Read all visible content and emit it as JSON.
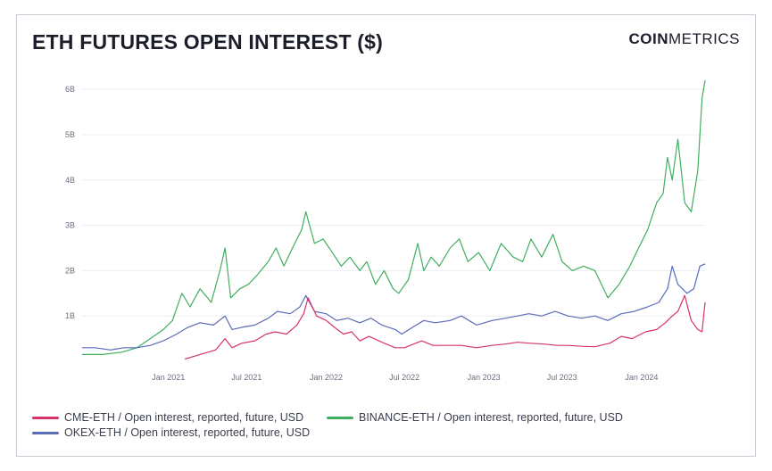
{
  "header": {
    "title": "ETH FUTURES OPEN INTEREST ($)",
    "logo_bold": "COIN",
    "logo_light": "METRICS"
  },
  "chart_data": {
    "type": "line",
    "title": "ETH FUTURES OPEN INTEREST ($)",
    "xlabel": "",
    "ylabel": "",
    "x_range": [
      "2020-06-15",
      "2024-05-27"
    ],
    "ylim": [
      0,
      6.3
    ],
    "y_unit": "billions USD",
    "y_ticks": [
      1,
      2,
      3,
      4,
      5,
      6
    ],
    "y_tick_labels": [
      "1B",
      "2B",
      "3B",
      "4B",
      "5B",
      "6B"
    ],
    "x_ticks": [
      "2021-01-01",
      "2021-07-01",
      "2022-01-01",
      "2022-07-01",
      "2023-01-01",
      "2023-07-01",
      "2024-01-01"
    ],
    "x_tick_labels": [
      "Jan 2021",
      "Jul 2021",
      "Jan 2022",
      "Jul 2022",
      "Jan 2023",
      "Jul 2023",
      "Jan 2024"
    ],
    "grid": true,
    "legend_position": "bottom",
    "series": [
      {
        "name": "CME-ETH / Open interest, reported, future, USD",
        "color": "#d6336c",
        "x": [
          "2021-02-08",
          "2021-03-15",
          "2021-04-20",
          "2021-05-12",
          "2021-05-28",
          "2021-06-20",
          "2021-07-20",
          "2021-08-15",
          "2021-09-05",
          "2021-10-01",
          "2021-10-25",
          "2021-11-10",
          "2021-11-20",
          "2021-12-10",
          "2022-01-01",
          "2022-01-20",
          "2022-02-10",
          "2022-03-01",
          "2022-03-20",
          "2022-04-10",
          "2022-05-15",
          "2022-06-10",
          "2022-07-01",
          "2022-08-10",
          "2022-09-05",
          "2022-10-15",
          "2022-11-10",
          "2022-12-15",
          "2023-01-20",
          "2023-02-20",
          "2023-03-20",
          "2023-04-15",
          "2023-05-20",
          "2023-06-20",
          "2023-07-15",
          "2023-08-15",
          "2023-09-15",
          "2023-10-20",
          "2023-11-15",
          "2023-12-10",
          "2024-01-10",
          "2024-02-05",
          "2024-02-25",
          "2024-03-12",
          "2024-03-25",
          "2024-04-10",
          "2024-04-25",
          "2024-05-10",
          "2024-05-20",
          "2024-05-27"
        ],
        "values": [
          0.05,
          0.15,
          0.25,
          0.5,
          0.3,
          0.4,
          0.45,
          0.6,
          0.65,
          0.6,
          0.8,
          1.05,
          1.4,
          1.0,
          0.9,
          0.75,
          0.6,
          0.65,
          0.45,
          0.55,
          0.4,
          0.3,
          0.3,
          0.45,
          0.35,
          0.35,
          0.35,
          0.3,
          0.35,
          0.38,
          0.42,
          0.4,
          0.38,
          0.35,
          0.35,
          0.33,
          0.32,
          0.4,
          0.55,
          0.5,
          0.65,
          0.7,
          0.85,
          1.0,
          1.1,
          1.45,
          0.9,
          0.7,
          0.65,
          1.3
        ]
      },
      {
        "name": "BINANCE-ETH / Open interest, reported, future, USD",
        "color": "#3fae5e",
        "x": [
          "2020-06-15",
          "2020-08-01",
          "2020-09-15",
          "2020-10-20",
          "2020-11-20",
          "2020-12-20",
          "2021-01-10",
          "2021-02-01",
          "2021-02-20",
          "2021-03-15",
          "2021-04-10",
          "2021-04-30",
          "2021-05-12",
          "2021-05-25",
          "2021-06-15",
          "2021-07-05",
          "2021-07-25",
          "2021-08-20",
          "2021-09-07",
          "2021-09-25",
          "2021-10-15",
          "2021-11-05",
          "2021-11-15",
          "2021-12-05",
          "2021-12-25",
          "2022-01-15",
          "2022-02-05",
          "2022-02-25",
          "2022-03-20",
          "2022-04-05",
          "2022-04-25",
          "2022-05-15",
          "2022-06-05",
          "2022-06-18",
          "2022-07-10",
          "2022-08-01",
          "2022-08-15",
          "2022-09-01",
          "2022-09-20",
          "2022-10-15",
          "2022-11-05",
          "2022-11-25",
          "2022-12-20",
          "2023-01-15",
          "2023-02-10",
          "2023-03-10",
          "2023-04-01",
          "2023-04-20",
          "2023-05-15",
          "2023-06-10",
          "2023-07-01",
          "2023-07-25",
          "2023-08-20",
          "2023-09-15",
          "2023-10-15",
          "2023-11-10",
          "2023-12-05",
          "2023-12-25",
          "2024-01-15",
          "2024-02-05",
          "2024-02-20",
          "2024-03-01",
          "2024-03-12",
          "2024-03-25",
          "2024-04-10",
          "2024-04-25",
          "2024-05-10",
          "2024-05-20",
          "2024-05-27"
        ],
        "values": [
          0.15,
          0.15,
          0.2,
          0.3,
          0.5,
          0.7,
          0.9,
          1.5,
          1.2,
          1.6,
          1.3,
          2.0,
          2.5,
          1.4,
          1.6,
          1.7,
          1.9,
          2.2,
          2.5,
          2.1,
          2.5,
          2.9,
          3.3,
          2.6,
          2.7,
          2.4,
          2.1,
          2.3,
          2.0,
          2.2,
          1.7,
          2.0,
          1.6,
          1.5,
          1.8,
          2.6,
          2.0,
          2.3,
          2.1,
          2.5,
          2.7,
          2.2,
          2.4,
          2.0,
          2.6,
          2.3,
          2.2,
          2.7,
          2.3,
          2.8,
          2.2,
          2.0,
          2.1,
          2.0,
          1.4,
          1.7,
          2.1,
          2.5,
          2.9,
          3.5,
          3.7,
          4.5,
          4.0,
          4.9,
          3.5,
          3.3,
          4.2,
          5.8,
          6.2
        ]
      },
      {
        "name": "OKEX-ETH / Open interest, reported, future, USD",
        "color": "#5b6bb8",
        "x": [
          "2020-06-15",
          "2020-07-15",
          "2020-08-20",
          "2020-09-20",
          "2020-10-20",
          "2020-11-20",
          "2020-12-20",
          "2021-01-20",
          "2021-02-15",
          "2021-03-15",
          "2021-04-15",
          "2021-05-12",
          "2021-05-28",
          "2021-06-20",
          "2021-07-20",
          "2021-08-20",
          "2021-09-10",
          "2021-10-10",
          "2021-11-01",
          "2021-11-15",
          "2021-12-05",
          "2022-01-01",
          "2022-01-25",
          "2022-02-20",
          "2022-03-20",
          "2022-04-15",
          "2022-05-10",
          "2022-06-10",
          "2022-06-25",
          "2022-07-20",
          "2022-08-15",
          "2022-09-10",
          "2022-10-15",
          "2022-11-10",
          "2022-12-15",
          "2023-01-20",
          "2023-02-20",
          "2023-03-20",
          "2023-04-15",
          "2023-05-15",
          "2023-06-15",
          "2023-07-15",
          "2023-08-15",
          "2023-09-15",
          "2023-10-15",
          "2023-11-15",
          "2023-12-15",
          "2024-01-15",
          "2024-02-10",
          "2024-03-01",
          "2024-03-12",
          "2024-03-25",
          "2024-04-15",
          "2024-05-01",
          "2024-05-15",
          "2024-05-27"
        ],
        "values": [
          0.3,
          0.3,
          0.25,
          0.3,
          0.3,
          0.35,
          0.45,
          0.6,
          0.75,
          0.85,
          0.8,
          1.0,
          0.7,
          0.75,
          0.8,
          0.95,
          1.1,
          1.05,
          1.2,
          1.45,
          1.1,
          1.05,
          0.9,
          0.95,
          0.85,
          0.95,
          0.8,
          0.7,
          0.6,
          0.75,
          0.9,
          0.85,
          0.9,
          1.0,
          0.8,
          0.9,
          0.95,
          1.0,
          1.05,
          1.0,
          1.1,
          1.0,
          0.95,
          1.0,
          0.9,
          1.05,
          1.1,
          1.2,
          1.3,
          1.6,
          2.1,
          1.7,
          1.5,
          1.6,
          2.1,
          2.15
        ]
      }
    ]
  }
}
